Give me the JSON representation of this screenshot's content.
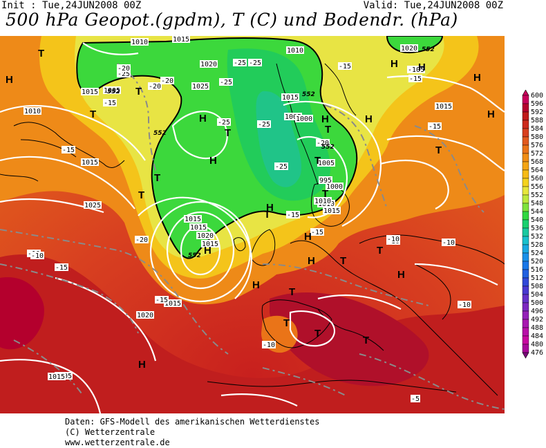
{
  "header": {
    "init": "Init : Tue,24JUN2008 00Z",
    "valid": "Valid: Tue,24JUN2008 00Z",
    "title": "500 hPa Geopot.(gpdm), T (C) und Bodendr. (hPa)"
  },
  "legend": {
    "levels": [
      600,
      596,
      592,
      588,
      584,
      580,
      576,
      572,
      568,
      564,
      560,
      556,
      552,
      548,
      544,
      540,
      536,
      532,
      528,
      524,
      520,
      516,
      512,
      508,
      504,
      500,
      496,
      492,
      488,
      484,
      480,
      476
    ],
    "colors": [
      "#c8005a",
      "#b4002d",
      "#c01a1a",
      "#cc2a1c",
      "#d8401e",
      "#e15a1e",
      "#ea7418",
      "#f08e14",
      "#f4a514",
      "#f6bb16",
      "#f4d21e",
      "#e6e63c",
      "#bce83c",
      "#7ee23c",
      "#30d840",
      "#18d070",
      "#18c8a0",
      "#18c0cc",
      "#18a8e0",
      "#1890e8",
      "#1878e8",
      "#2060e0",
      "#3048d8",
      "#4838d0",
      "#6430c8",
      "#7c28c0",
      "#9420b8",
      "#a818b0",
      "#b810a8",
      "#c808a0",
      "#a8089a",
      "#7a0a7a"
    ]
  },
  "map_labels": {
    "isobars": [
      "1010",
      "1015",
      "1005",
      "1020",
      "1025",
      "1015",
      "1010",
      "1015",
      "1005",
      "1000",
      "995",
      "1005",
      "1000",
      "1010",
      "1015",
      "1010",
      "1015",
      "1020",
      "1015",
      "1015",
      "1015",
      "1020",
      "1015",
      "1010",
      "1015",
      "1025",
      "1020",
      "1005",
      "1015",
      "1015"
    ],
    "temps": [
      "-25",
      "-20",
      "-25",
      "-25",
      "-25",
      "-20",
      "-15",
      "-15",
      "-25",
      "-25",
      "-20",
      "-15",
      "-25",
      "-10",
      "-15",
      "-15",
      "-20",
      "-10",
      "-15",
      "-20",
      "-15",
      "-10",
      "-10",
      "-10",
      "-10",
      "-5",
      "-10",
      "-15",
      "-10",
      "-15"
    ],
    "high_low": [
      "T",
      "H",
      "T",
      "T",
      "T",
      "H",
      "T",
      "H",
      "T",
      "H",
      "T",
      "H",
      "T",
      "T",
      "H",
      "T",
      "H",
      "H",
      "H",
      "T",
      "T",
      "H",
      "T",
      "H",
      "H",
      "T",
      "H",
      "H",
      "H",
      "T",
      "T",
      "T",
      "H"
    ],
    "geopot": [
      "552",
      "552",
      "552",
      "552",
      "552",
      "552"
    ]
  },
  "footer": {
    "line1": "Daten: GFS-Modell des amerikanischen Wetterdienstes",
    "line2": "(C) Wetterzentrale",
    "line3": "www.wetterzentrale.de"
  }
}
